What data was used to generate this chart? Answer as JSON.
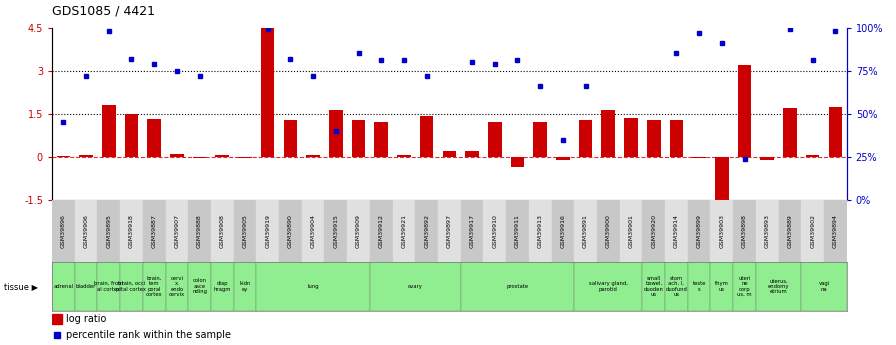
{
  "title": "GDS1085 / 4421",
  "gsm_labels": [
    "GSM39896",
    "GSM39906",
    "GSM39895",
    "GSM39918",
    "GSM39887",
    "GSM39907",
    "GSM39888",
    "GSM39908",
    "GSM39905",
    "GSM39919",
    "GSM39890",
    "GSM39904",
    "GSM39915",
    "GSM39909",
    "GSM39912",
    "GSM39921",
    "GSM39892",
    "GSM39897",
    "GSM39917",
    "GSM39910",
    "GSM39911",
    "GSM39913",
    "GSM39916",
    "GSM39891",
    "GSM39900",
    "GSM39901",
    "GSM39920",
    "GSM39914",
    "GSM39899",
    "GSM39903",
    "GSM39898",
    "GSM39893",
    "GSM39889",
    "GSM39902",
    "GSM39894"
  ],
  "log_ratio": [
    0.02,
    0.07,
    1.8,
    1.5,
    1.32,
    0.12,
    -0.05,
    0.07,
    -0.02,
    4.5,
    1.3,
    0.07,
    1.65,
    1.28,
    1.22,
    0.06,
    1.42,
    0.2,
    0.22,
    1.22,
    -0.35,
    1.22,
    -0.12,
    1.3,
    1.65,
    1.35,
    1.28,
    1.3,
    -0.05,
    -1.55,
    3.2,
    -0.12,
    1.7,
    0.06,
    1.75
  ],
  "percentile_rank_pct": [
    45,
    72,
    98,
    82,
    79,
    75,
    72,
    null,
    null,
    99,
    82,
    72,
    40,
    85,
    81,
    81,
    72,
    null,
    80,
    79,
    81,
    66,
    35,
    66,
    null,
    null,
    null,
    85,
    97,
    91,
    24,
    null,
    99,
    81,
    98
  ],
  "tissue_groups": [
    {
      "label": "adrenal",
      "start": 0,
      "end": 1
    },
    {
      "label": "bladder",
      "start": 1,
      "end": 2
    },
    {
      "label": "brain, front\nal cortex",
      "start": 2,
      "end": 3
    },
    {
      "label": "brain, occi\npital cortex",
      "start": 3,
      "end": 4
    },
    {
      "label": "brain,\ntem\nporal\ncortex",
      "start": 4,
      "end": 5
    },
    {
      "label": "cervi\nx,\nendo\ncervix",
      "start": 5,
      "end": 6
    },
    {
      "label": "colon\nasce\nnding",
      "start": 6,
      "end": 7
    },
    {
      "label": "diap\nhragm",
      "start": 7,
      "end": 8
    },
    {
      "label": "kidn\ney",
      "start": 8,
      "end": 9
    },
    {
      "label": "lung",
      "start": 9,
      "end": 14
    },
    {
      "label": "ovary",
      "start": 14,
      "end": 18
    },
    {
      "label": "prostate",
      "start": 18,
      "end": 23
    },
    {
      "label": "salivary gland,\nparotid",
      "start": 23,
      "end": 26
    },
    {
      "label": "small\nbowel,\nduoden\nus",
      "start": 26,
      "end": 27
    },
    {
      "label": "stom\nach, I,\nduofund\nus",
      "start": 27,
      "end": 28
    },
    {
      "label": "teste\ns",
      "start": 28,
      "end": 29
    },
    {
      "label": "thym\nus",
      "start": 29,
      "end": 30
    },
    {
      "label": "uteri\nne\ncorp\nus, m",
      "start": 30,
      "end": 31
    },
    {
      "label": "uterus,\nendomy\netrium",
      "start": 31,
      "end": 33
    },
    {
      "label": "vagi\nna",
      "start": 33,
      "end": 35
    }
  ],
  "bar_color": "#cc0000",
  "dot_color": "#0000cc",
  "ylim_left": [
    -1.5,
    4.5
  ],
  "ylim_right": [
    0,
    100
  ],
  "yticks_left": [
    -1.5,
    0.0,
    1.5,
    3.0,
    4.5
  ],
  "ytick_labels_left": [
    "-1.5",
    "0",
    "1.5",
    "3",
    "4.5"
  ],
  "yticks_right_pct": [
    0,
    25,
    50,
    75,
    100
  ],
  "ytick_labels_right": [
    "0%",
    "25%",
    "50%",
    "75%",
    "100%"
  ],
  "background_color": "#ffffff",
  "green_color": "#90ee90",
  "gsm_color_even": "#c8c8c8",
  "gsm_color_odd": "#e0e0e0"
}
